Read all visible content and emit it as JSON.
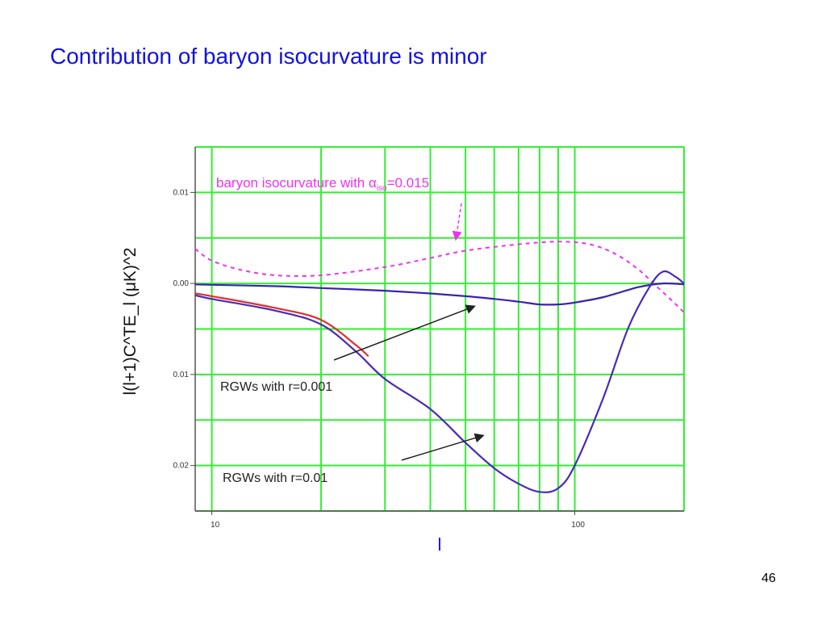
{
  "slide": {
    "title": "Contribution of baryon isocurvature is minor",
    "page_number": "46"
  },
  "colors": {
    "title": "#1212e0",
    "grid": "#33ee33",
    "rgw_r0001": "#3a22b0",
    "rgw_r001_red": "#e03030",
    "rgw_r001_blue": "#4a2ab8",
    "isocurvature": "#ee33ee",
    "arrow": "#222222"
  },
  "chart_data": {
    "type": "line",
    "title": "",
    "xlabel": "l",
    "ylabel": "l(l+1)C^TE_l (μK)^2",
    "x_scale": "log",
    "xlim": [
      9,
      200
    ],
    "ylim": [
      -0.025,
      0.015
    ],
    "x_ticks": [
      {
        "value": 10,
        "label": "10"
      },
      {
        "value": 100,
        "label": "100"
      }
    ],
    "y_ticks": [
      {
        "value": 0.01,
        "label": "0.01"
      },
      {
        "value": 0.0,
        "label": "0.00"
      },
      {
        "value": -0.01,
        "label": "0.01"
      },
      {
        "value": -0.02,
        "label": "0.02"
      }
    ],
    "grid": true,
    "series": [
      {
        "name": "RGWs with r=0.001",
        "color": "#3a22b0",
        "style": "solid",
        "points": [
          [
            9,
            -0.0001
          ],
          [
            10,
            -0.00015
          ],
          [
            15,
            -0.0003
          ],
          [
            20,
            -0.0005
          ],
          [
            30,
            -0.0008
          ],
          [
            40,
            -0.0011
          ],
          [
            50,
            -0.0014
          ],
          [
            60,
            -0.0017
          ],
          [
            70,
            -0.002
          ],
          [
            80,
            -0.0023
          ],
          [
            90,
            -0.0023
          ],
          [
            100,
            -0.0021
          ],
          [
            120,
            -0.0015
          ],
          [
            150,
            -0.0004
          ],
          [
            175,
            0.0
          ],
          [
            200,
            -0.0001
          ]
        ]
      },
      {
        "name": "RGWs with r=0.01",
        "color": "#4a2ab8",
        "style": "solid",
        "points": [
          [
            9,
            -0.0013
          ],
          [
            10,
            -0.0017
          ],
          [
            15,
            -0.003
          ],
          [
            20,
            -0.0045
          ],
          [
            25,
            -0.0075
          ],
          [
            30,
            -0.0105
          ],
          [
            40,
            -0.0138
          ],
          [
            50,
            -0.0175
          ],
          [
            60,
            -0.0203
          ],
          [
            70,
            -0.022
          ],
          [
            80,
            -0.0229
          ],
          [
            90,
            -0.0225
          ],
          [
            100,
            -0.02
          ],
          [
            120,
            -0.0125
          ],
          [
            140,
            -0.005
          ],
          [
            160,
            -0.0005
          ],
          [
            175,
            0.0013
          ],
          [
            190,
            0.0007
          ],
          [
            200,
            0.0
          ]
        ]
      },
      {
        "name": "",
        "color": "#e03030",
        "style": "solid",
        "points": [
          [
            9,
            -0.0011
          ],
          [
            10,
            -0.0014
          ],
          [
            15,
            -0.0027
          ],
          [
            20,
            -0.004
          ],
          [
            25,
            -0.0068
          ],
          [
            27,
            -0.008
          ]
        ]
      },
      {
        "name": "baryon isocurvature with α",
        "color": "#ee33ee",
        "style": "dashed",
        "points": [
          [
            9,
            0.0038
          ],
          [
            10,
            0.0025
          ],
          [
            12,
            0.0015
          ],
          [
            15,
            0.0009
          ],
          [
            20,
            0.0009
          ],
          [
            30,
            0.0018
          ],
          [
            40,
            0.0028
          ],
          [
            50,
            0.0036
          ],
          [
            70,
            0.0043
          ],
          [
            90,
            0.0046
          ],
          [
            110,
            0.0043
          ],
          [
            130,
            0.0032
          ],
          [
            150,
            0.0015
          ],
          [
            170,
            -0.0005
          ],
          [
            190,
            -0.0023
          ],
          [
            200,
            -0.0032
          ]
        ]
      }
    ],
    "annotations": [
      {
        "text": "baryon isocurvature with α",
        "subscript": "iso",
        "suffix": "=0.015",
        "color": "#ee33ee",
        "arrow_target": [
          47,
          0.0048
        ]
      },
      {
        "text": "RGWs with r=0.001",
        "color": "#222222",
        "arrow_target": [
          53,
          -0.0025
        ]
      },
      {
        "text": "RGWs with r=0.01",
        "color": "#222222",
        "arrow_target": [
          56,
          -0.0167
        ]
      }
    ]
  }
}
